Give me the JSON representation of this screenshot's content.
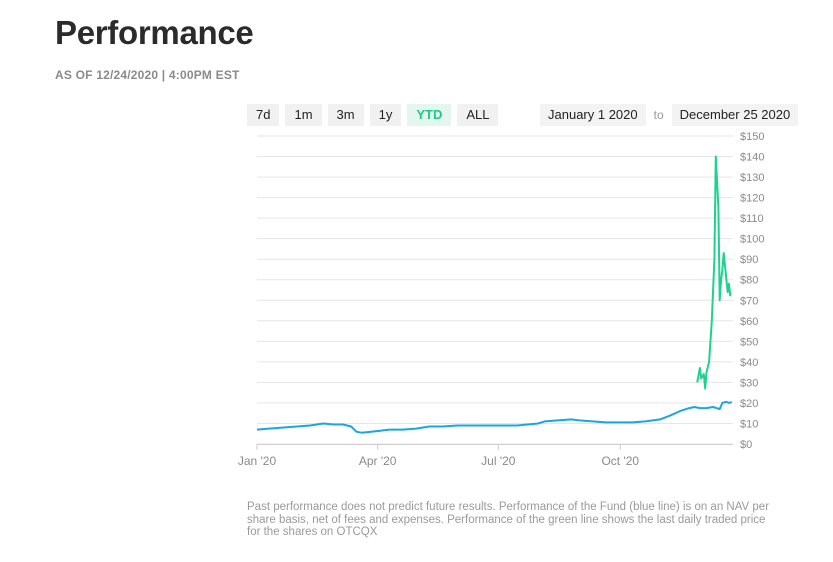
{
  "header": {
    "title": "Performance",
    "as_of": "AS OF 12/24/2020 | 4:00PM EST"
  },
  "range_buttons": [
    {
      "label": "7d",
      "active": false
    },
    {
      "label": "1m",
      "active": false
    },
    {
      "label": "3m",
      "active": false
    },
    {
      "label": "1y",
      "active": false
    },
    {
      "label": "YTD",
      "active": true
    },
    {
      "label": "ALL",
      "active": false
    }
  ],
  "date_range": {
    "from": "January 1 2020",
    "separator": "to",
    "to": "December 25 2020"
  },
  "colors": {
    "nav_line": "#1aa7e0",
    "price_line": "#1fd18f",
    "grid": "#e6e6e6",
    "axis_text": "#8a8a8a"
  },
  "chart_data": {
    "type": "line",
    "x_tick_labels": [
      "Jan '20",
      "Apr '20",
      "Jul '20",
      "Oct '20"
    ],
    "y_tick_labels": [
      "$0",
      "$10",
      "$20",
      "$30",
      "$40",
      "$50",
      "$60",
      "$70",
      "$80",
      "$90",
      "$100",
      "$110",
      "$120",
      "$130",
      "$140",
      "$150"
    ],
    "ylim": [
      0,
      150
    ],
    "xlim": [
      "2020-01-01",
      "2020-12-25"
    ],
    "grid": true,
    "series": [
      {
        "name": "NAV",
        "color": "#1aa7e0",
        "points": [
          [
            "2020-01-01",
            7
          ],
          [
            "2020-01-10",
            7.5
          ],
          [
            "2020-01-20",
            8
          ],
          [
            "2020-01-31",
            8.5
          ],
          [
            "2020-02-10",
            9
          ],
          [
            "2020-02-20",
            10
          ],
          [
            "2020-02-28",
            9.5
          ],
          [
            "2020-03-06",
            9.5
          ],
          [
            "2020-03-12",
            8.5
          ],
          [
            "2020-03-16",
            6
          ],
          [
            "2020-03-20",
            5.5
          ],
          [
            "2020-03-27",
            6
          ],
          [
            "2020-04-03",
            6.5
          ],
          [
            "2020-04-10",
            7
          ],
          [
            "2020-04-20",
            7
          ],
          [
            "2020-04-30",
            7.5
          ],
          [
            "2020-05-10",
            8.5
          ],
          [
            "2020-05-20",
            8.5
          ],
          [
            "2020-05-31",
            9
          ],
          [
            "2020-06-15",
            9
          ],
          [
            "2020-06-30",
            9
          ],
          [
            "2020-07-15",
            9
          ],
          [
            "2020-07-31",
            10
          ],
          [
            "2020-08-05",
            11
          ],
          [
            "2020-08-15",
            11.5
          ],
          [
            "2020-08-25",
            12
          ],
          [
            "2020-08-31",
            11.5
          ],
          [
            "2020-09-10",
            11
          ],
          [
            "2020-09-20",
            10.5
          ],
          [
            "2020-09-30",
            10.5
          ],
          [
            "2020-10-10",
            10.5
          ],
          [
            "2020-10-20",
            11
          ],
          [
            "2020-10-31",
            12
          ],
          [
            "2020-11-08",
            14
          ],
          [
            "2020-11-15",
            16
          ],
          [
            "2020-11-22",
            17.5
          ],
          [
            "2020-11-26",
            18
          ],
          [
            "2020-11-30",
            17.5
          ],
          [
            "2020-12-05",
            17.5
          ],
          [
            "2020-12-10",
            18
          ],
          [
            "2020-12-15",
            17
          ],
          [
            "2020-12-17",
            20
          ],
          [
            "2020-12-20",
            20.5
          ],
          [
            "2020-12-22",
            20
          ],
          [
            "2020-12-24",
            20.5
          ]
        ]
      },
      {
        "name": "Price",
        "color": "#1fd18f",
        "points": [
          [
            "2020-11-28",
            30
          ],
          [
            "2020-11-30",
            37
          ],
          [
            "2020-12-01",
            32
          ],
          [
            "2020-12-02",
            33
          ],
          [
            "2020-12-03",
            34
          ],
          [
            "2020-12-04",
            27
          ],
          [
            "2020-12-05",
            35
          ],
          [
            "2020-12-07",
            40
          ],
          [
            "2020-12-09",
            60
          ],
          [
            "2020-12-11",
            90
          ],
          [
            "2020-12-12",
            140
          ],
          [
            "2020-12-14",
            115
          ],
          [
            "2020-12-15",
            70
          ],
          [
            "2020-12-16",
            80
          ],
          [
            "2020-12-17",
            85
          ],
          [
            "2020-12-18",
            93
          ],
          [
            "2020-12-20",
            80
          ],
          [
            "2020-12-21",
            74
          ],
          [
            "2020-12-22",
            78
          ],
          [
            "2020-12-23",
            72
          ]
        ]
      }
    ]
  },
  "disclaimer": "Past performance does not predict future results. Performance of the Fund (blue line) is on an NAV per share basis, net of fees and expenses. Performance of the green line shows the last daily traded price for the shares on OTCQX"
}
